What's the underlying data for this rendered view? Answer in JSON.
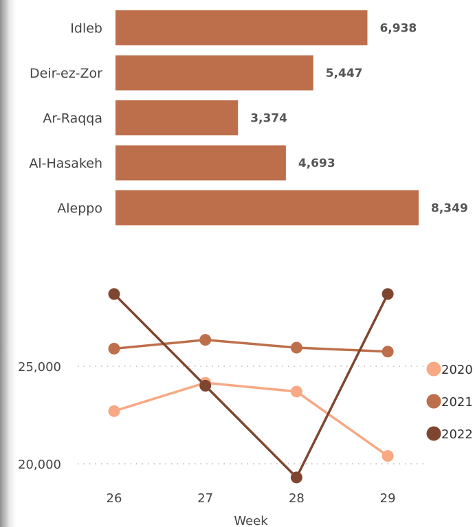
{
  "chart_data": [
    {
      "type": "bar",
      "orientation": "horizontal",
      "categories": [
        "Idleb",
        "Deir-ez-Zor",
        "Ar-Raqqa",
        "Al-Hasakeh",
        "Aleppo"
      ],
      "values": [
        6938,
        5447,
        3374,
        4693,
        8349
      ],
      "value_labels": [
        "6,938",
        "5,447",
        "3,374",
        "4,693",
        "8,349"
      ],
      "color": "#BD6F4B"
    },
    {
      "type": "line",
      "xlabel": "Week",
      "x": [
        26,
        27,
        28,
        29
      ],
      "x_tick_labels": [
        "26",
        "27",
        "28",
        "29"
      ],
      "y_ticks": [
        20000,
        25000
      ],
      "y_tick_labels": [
        "20,000",
        "25,000"
      ],
      "ylim": [
        19300,
        28900
      ],
      "grid": "dotted horizontal",
      "legend_position": "right",
      "series": [
        {
          "name": "2020",
          "color": "#F8A883",
          "values": [
            22700,
            24150,
            23700,
            20400
          ]
        },
        {
          "name": "2021",
          "color": "#BD6F4B",
          "values": [
            25900,
            26350,
            25950,
            25750
          ]
        },
        {
          "name": "2022",
          "color": "#7E4630",
          "values": [
            28700,
            24000,
            19300,
            28700
          ]
        }
      ]
    }
  ]
}
